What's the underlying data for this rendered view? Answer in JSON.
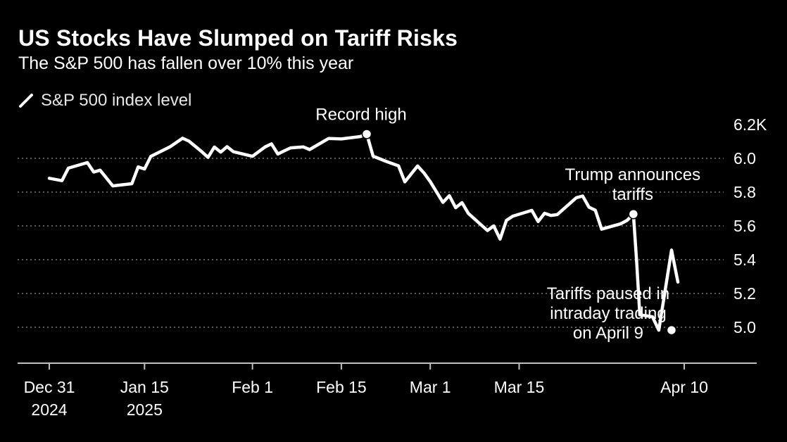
{
  "colors": {
    "background": "#000000",
    "line": "#ffffff",
    "grid": "#7a7a7a",
    "text": "#ffffff"
  },
  "header": {
    "title": "US Stocks Have Slumped on Tariff Risks",
    "subtitle": "The S&P 500 has fallen over 10% this year"
  },
  "legend": {
    "label": "S&P 500 index level",
    "icon": "line-icon"
  },
  "chart_data": {
    "type": "line",
    "title": "US Stocks Have Slumped on Tariff Risks",
    "subtitle": "The S&P 500 has fallen over 10% this year",
    "xlabel": "",
    "ylabel": "S&P 500 index level",
    "ylim": [
      4.8,
      6.2
    ],
    "y_unit": "thousands",
    "y_ticks": [
      {
        "value": 6.2,
        "label": "6.2K"
      },
      {
        "value": 6.0,
        "label": "6.0"
      },
      {
        "value": 5.8,
        "label": "5.8"
      },
      {
        "value": 5.6,
        "label": "5.6"
      },
      {
        "value": 5.4,
        "label": "5.4"
      },
      {
        "value": 5.2,
        "label": "5.2"
      },
      {
        "value": 5.0,
        "label": "5.0"
      }
    ],
    "x_ticks": [
      {
        "day": 0,
        "label": [
          "Dec 31",
          "2024"
        ]
      },
      {
        "day": 15,
        "label": [
          "Jan 15",
          "2025"
        ]
      },
      {
        "day": 32,
        "label": [
          "Feb 1"
        ]
      },
      {
        "day": 46,
        "label": [
          "Feb 15"
        ]
      },
      {
        "day": 60,
        "label": [
          "Mar 1"
        ]
      },
      {
        "day": 74,
        "label": [
          "Mar 15"
        ]
      },
      {
        "day": 100,
        "label": [
          "Apr 10"
        ]
      }
    ],
    "grid": true,
    "series": [
      {
        "name": "S&P 500 index level",
        "x": [
          0,
          2,
          3,
          6,
          7,
          8,
          10,
          13,
          14,
          15,
          16,
          19,
          21,
          22,
          24,
          25,
          26,
          27,
          28,
          29,
          32,
          34,
          35,
          36,
          37,
          38,
          40,
          41,
          44,
          46,
          49,
          50,
          51,
          53,
          55,
          56,
          58,
          59,
          60,
          62,
          63,
          64,
          65,
          66,
          69,
          70,
          71,
          72,
          73,
          76,
          77,
          78,
          79,
          80,
          83,
          84,
          85,
          86,
          87,
          90,
          91,
          92,
          92.5,
          93,
          95,
          96,
          98,
          99
        ],
        "values": [
          5.882,
          5.868,
          5.942,
          5.975,
          5.919,
          5.93,
          5.837,
          5.85,
          5.949,
          5.937,
          6.012,
          6.068,
          6.119,
          6.102,
          6.04,
          6.006,
          6.067,
          6.037,
          6.069,
          6.039,
          6.012,
          6.068,
          6.086,
          6.026,
          6.044,
          6.062,
          6.068,
          6.052,
          6.118,
          6.115,
          6.129,
          6.144,
          6.013,
          5.983,
          5.956,
          5.861,
          5.955,
          5.914,
          5.862,
          5.739,
          5.779,
          5.708,
          5.738,
          5.674,
          5.573,
          5.6,
          5.522,
          5.633,
          5.658,
          5.692,
          5.626,
          5.675,
          5.662,
          5.667,
          5.767,
          5.777,
          5.711,
          5.693,
          5.581,
          5.613,
          5.633,
          5.67,
          5.396,
          5.074,
          5.062,
          4.983,
          5.457,
          5.268
        ]
      }
    ],
    "annotations": [
      {
        "text": [
          "Record high"
        ],
        "x": 50,
        "y": 6.144,
        "label_side": "above"
      },
      {
        "text": [
          "Trump announces",
          "tariffs"
        ],
        "x": 92,
        "y": 5.67,
        "label_side": "above"
      },
      {
        "text": [
          "Tariffs paused in",
          "intraday trading",
          "on April 9"
        ],
        "x": 98,
        "y": 4.983,
        "label_side": "left"
      }
    ]
  }
}
